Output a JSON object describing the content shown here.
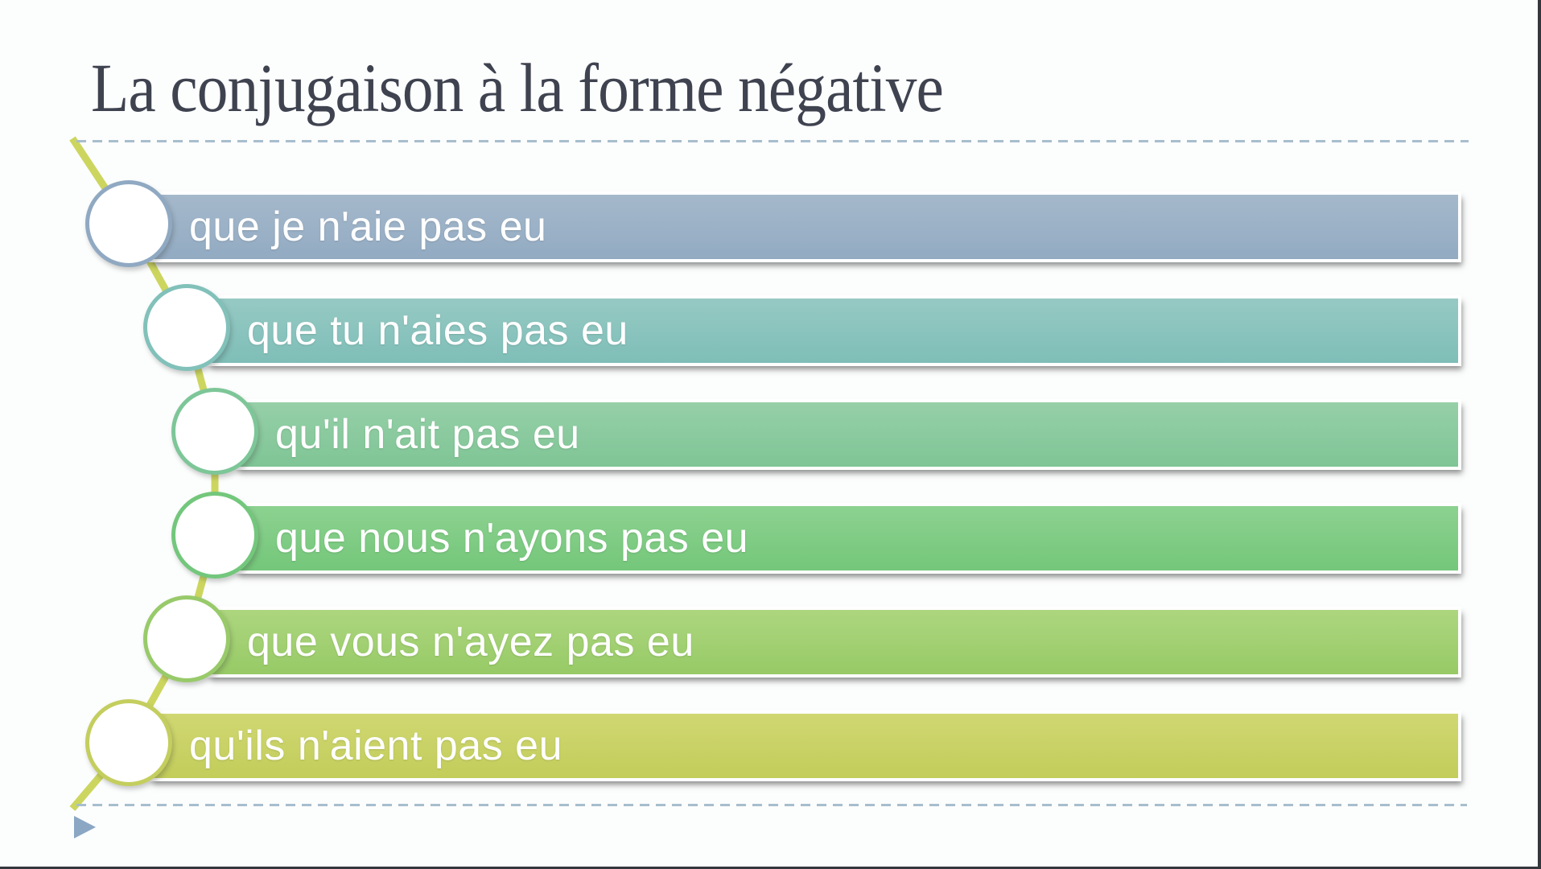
{
  "slide": {
    "title": "La conjugaison à la forme négative",
    "title_color": "#3f4350",
    "background": "#fcfdfd",
    "divider_color": "#a7becd",
    "connector_color": "#ccd65f",
    "arrow_color": "#8ba7c4",
    "label_color": "#ffffff",
    "edge_color": "#34373c",
    "items": [
      {
        "label": "que je n'aie pas eu",
        "color_top": "#a5b8cb",
        "color_bottom": "#92abc2",
        "circle_color": "#90a9c2"
      },
      {
        "label": "que tu n'aies pas eu",
        "color_top": "#96c9c3",
        "color_bottom": "#7fbeb8",
        "circle_color": "#81c1ba"
      },
      {
        "label": "qu'il n'ait pas eu",
        "color_top": "#96cfa8",
        "color_bottom": "#7fc595",
        "circle_color": "#7dc698"
      },
      {
        "label": "que nous n'ayons pas eu",
        "color_top": "#8cd190",
        "color_bottom": "#74c77a",
        "circle_color": "#73c77c"
      },
      {
        "label": "que vous n'ayez pas eu",
        "color_top": "#add67f",
        "color_bottom": "#97ca66",
        "circle_color": "#98ca6a"
      },
      {
        "label": "qu'ils n'aient pas eu",
        "color_top": "#d0d772",
        "color_bottom": "#c2cd5a",
        "circle_color": "#c4ce5e"
      }
    ]
  }
}
